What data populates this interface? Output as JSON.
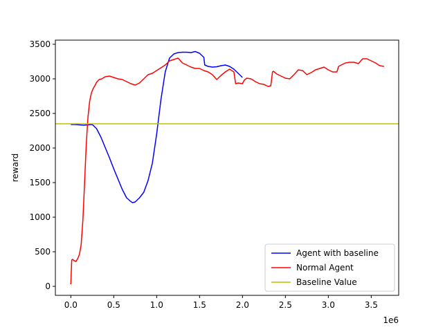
{
  "chart_data": {
    "type": "line",
    "title": "",
    "xlabel": "",
    "ylabel": "reward",
    "x_offset_label": "1e6",
    "xlim": [
      -0.18,
      3.82
    ],
    "ylim": [
      -130,
      3560
    ],
    "x_ticks": [
      0.0,
      0.5,
      1.0,
      1.5,
      2.0,
      2.5,
      3.0,
      3.5
    ],
    "x_tick_labels": [
      "0.0",
      "0.5",
      "1.0",
      "1.5",
      "2.0",
      "2.5",
      "3.0",
      "3.5"
    ],
    "y_ticks": [
      0,
      500,
      1000,
      1500,
      2000,
      2500,
      3000,
      3500
    ],
    "y_tick_labels": [
      "0",
      "500",
      "1000",
      "1500",
      "2000",
      "2500",
      "3000",
      "3500"
    ],
    "grid": false,
    "legend_position": "lower-right",
    "series": [
      {
        "name": "Agent with baseline",
        "color": "#0000ff",
        "x": [
          0.0,
          0.05,
          0.1,
          0.15,
          0.2,
          0.25,
          0.3,
          0.35,
          0.4,
          0.45,
          0.5,
          0.55,
          0.6,
          0.65,
          0.7,
          0.72,
          0.75,
          0.8,
          0.85,
          0.9,
          0.95,
          1.0,
          1.05,
          1.1,
          1.15,
          1.2,
          1.25,
          1.3,
          1.35,
          1.4,
          1.45,
          1.5,
          1.55,
          1.56,
          1.6,
          1.65,
          1.7,
          1.75,
          1.8,
          1.85,
          1.9,
          1.95,
          2.0
        ],
        "y": [
          2340,
          2340,
          2335,
          2330,
          2335,
          2340,
          2280,
          2160,
          2010,
          1860,
          1700,
          1550,
          1400,
          1280,
          1225,
          1210,
          1220,
          1280,
          1360,
          1530,
          1780,
          2200,
          2700,
          3100,
          3300,
          3360,
          3380,
          3385,
          3385,
          3380,
          3395,
          3370,
          3310,
          3200,
          3180,
          3170,
          3175,
          3190,
          3200,
          3180,
          3140,
          3080,
          3020
        ]
      },
      {
        "name": "Normal Agent",
        "color": "#ff0000",
        "x": [
          0.0,
          0.01,
          0.02,
          0.04,
          0.06,
          0.08,
          0.1,
          0.12,
          0.14,
          0.16,
          0.18,
          0.2,
          0.22,
          0.24,
          0.26,
          0.28,
          0.3,
          0.33,
          0.36,
          0.4,
          0.45,
          0.5,
          0.55,
          0.6,
          0.65,
          0.7,
          0.75,
          0.8,
          0.85,
          0.9,
          0.95,
          1.0,
          1.05,
          1.1,
          1.15,
          1.2,
          1.25,
          1.3,
          1.35,
          1.4,
          1.45,
          1.5,
          1.55,
          1.6,
          1.65,
          1.7,
          1.75,
          1.8,
          1.85,
          1.9,
          1.92,
          1.95,
          2.0,
          2.02,
          2.05,
          2.1,
          2.15,
          2.2,
          2.25,
          2.3,
          2.33,
          2.35,
          2.36,
          2.4,
          2.45,
          2.5,
          2.55,
          2.6,
          2.65,
          2.7,
          2.75,
          2.8,
          2.85,
          2.9,
          2.95,
          3.0,
          3.05,
          3.1,
          3.12,
          3.15,
          3.2,
          3.25,
          3.3,
          3.35,
          3.4,
          3.45,
          3.5,
          3.55,
          3.6,
          3.65
        ],
        "y": [
          30,
          380,
          390,
          370,
          360,
          400,
          460,
          600,
          950,
          1500,
          2050,
          2450,
          2680,
          2800,
          2860,
          2900,
          2950,
          2990,
          3000,
          3030,
          3040,
          3020,
          3000,
          2990,
          2960,
          2930,
          2910,
          2940,
          3000,
          3060,
          3080,
          3120,
          3160,
          3200,
          3260,
          3280,
          3300,
          3230,
          3200,
          3170,
          3150,
          3150,
          3120,
          3100,
          3060,
          2990,
          3050,
          3100,
          3140,
          3100,
          2930,
          2940,
          2930,
          2980,
          3010,
          3000,
          2960,
          2930,
          2920,
          2890,
          2900,
          3100,
          3110,
          3070,
          3040,
          3010,
          3000,
          3060,
          3130,
          3120,
          3060,
          3090,
          3130,
          3150,
          3170,
          3130,
          3100,
          3100,
          3180,
          3200,
          3230,
          3240,
          3240,
          3220,
          3290,
          3290,
          3260,
          3230,
          3190,
          3180
        ]
      },
      {
        "name": "Baseline Value",
        "color": "#bfbf00",
        "x": [
          -0.18,
          3.82
        ],
        "y": [
          2350,
          2350
        ]
      }
    ]
  }
}
